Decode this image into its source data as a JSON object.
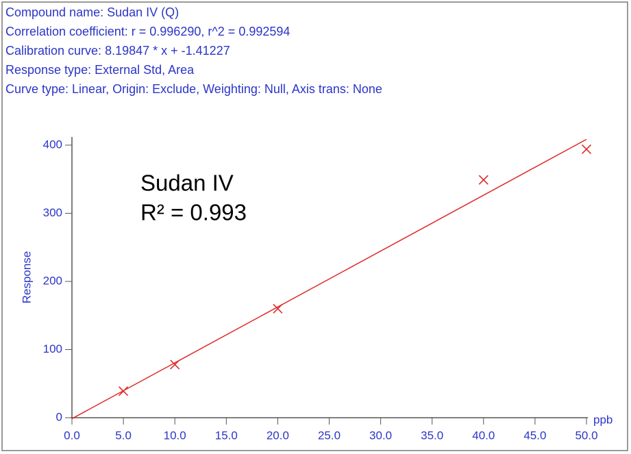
{
  "chart_data": {
    "type": "scatter",
    "header_lines": [
      "Compound name: Sudan IV (Q)",
      "Correlation coefficient: r = 0.996290, r^2 = 0.992594",
      "Calibration curve: 8.19847 * x + -1.41227",
      "Response type: External Std, Area",
      "Curve type: Linear, Origin: Exclude, Weighting: Null, Axis trans: None"
    ],
    "annotation": [
      "Sudan IV",
      "R² = 0.993"
    ],
    "y_label": "Response",
    "x_label": "ppb",
    "x": [
      5,
      10,
      20,
      40,
      50
    ],
    "values": [
      39,
      78,
      160,
      349,
      394
    ],
    "color": "#e02828",
    "fit_line": {
      "x": [
        0,
        50
      ],
      "values": [
        -1.41227,
        408.51123
      ],
      "color": "#e02828"
    },
    "xlim": [
      0,
      50
    ],
    "ylim": [
      0,
      412
    ],
    "xticks": [
      {
        "value": 0,
        "label": "0.0"
      },
      {
        "value": 5,
        "label": "5.0"
      },
      {
        "value": 10,
        "label": "10.0"
      },
      {
        "value": 15,
        "label": "15.0"
      },
      {
        "value": 20,
        "label": "20.0"
      },
      {
        "value": 25,
        "label": "25.0"
      },
      {
        "value": 30,
        "label": "30.0"
      },
      {
        "value": 35,
        "label": "35.0"
      },
      {
        "value": 40,
        "label": "40.0"
      },
      {
        "value": 45,
        "label": "45.0"
      },
      {
        "value": 50,
        "label": "50.0"
      }
    ],
    "yticks": [
      0,
      100,
      200,
      300,
      400
    ],
    "axis_color": "#2b35c8"
  }
}
